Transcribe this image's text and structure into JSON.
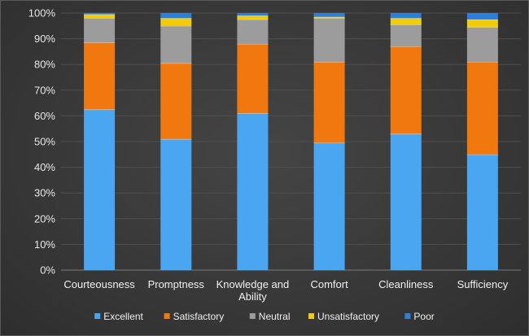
{
  "chart_data": {
    "type": "bar",
    "stacked": true,
    "percent": true,
    "categories": [
      "Courteousness",
      "Promptness",
      "Knowledge and Ability",
      "Comfort",
      "Cleanliness",
      "Sufficiency"
    ],
    "series": [
      {
        "name": "Excellent",
        "color": "#4aa6f0",
        "values": [
          62.5,
          51,
          61,
          49.5,
          53,
          45
        ]
      },
      {
        "name": "Satisfactory",
        "color": "#f0780f",
        "values": [
          26,
          29.5,
          27,
          31.5,
          34,
          36
        ]
      },
      {
        "name": "Neutral",
        "color": "#9c9c9c",
        "values": [
          9.5,
          14.5,
          9.5,
          17,
          8.5,
          13.5
        ]
      },
      {
        "name": "Unsatisfactory",
        "color": "#f2cc07",
        "values": [
          1.5,
          3,
          1.5,
          0.5,
          2.5,
          3
        ]
      },
      {
        "name": "Poor",
        "color": "#2f7fd6",
        "values": [
          0.5,
          2,
          1,
          1.5,
          2,
          2.5
        ]
      }
    ],
    "yticks": [
      "0%",
      "10%",
      "20%",
      "30%",
      "40%",
      "50%",
      "60%",
      "70%",
      "80%",
      "90%",
      "100%"
    ],
    "ylim": [
      0,
      100
    ],
    "grid": true,
    "legend": "bottom",
    "title": "",
    "xlabel": "",
    "ylabel": ""
  }
}
